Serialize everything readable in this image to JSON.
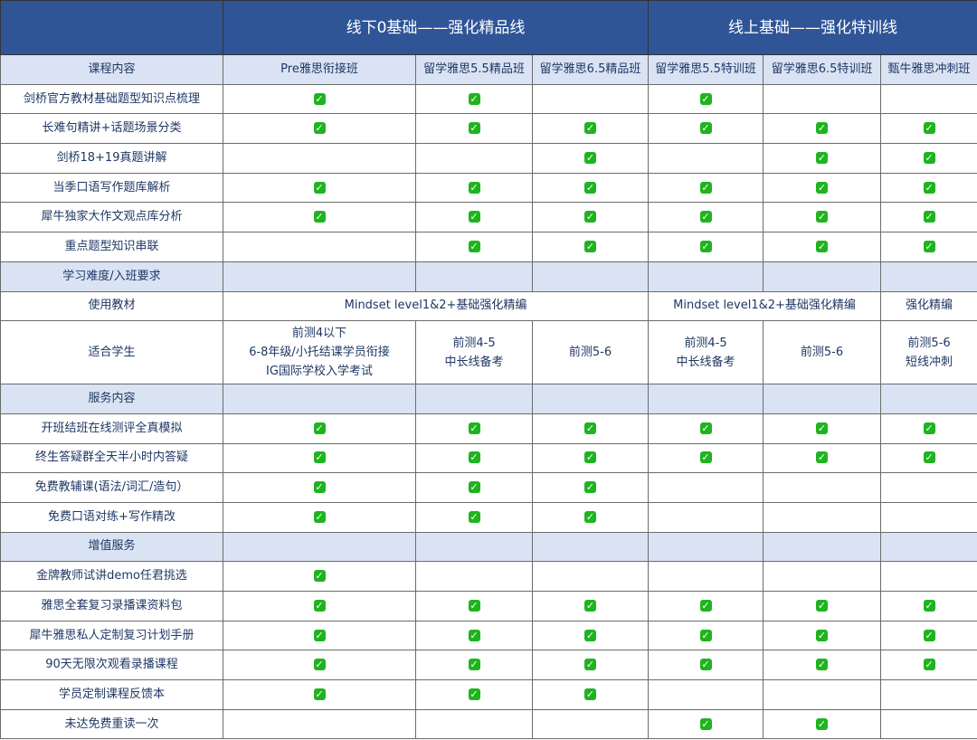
{
  "header": {
    "group1": "线下0基础——强化精品线",
    "group2": "线上基础——强化特训线"
  },
  "colors": {
    "header_bg": "#2f5597",
    "subheader_bg": "#dae3f3",
    "check": "#1fb41f"
  },
  "columns": {
    "label": "课程内容",
    "items": [
      "Pre雅思衔接班",
      "留学雅思5.5精品班",
      "留学雅思6.5精品班",
      "留学雅思5.5特训班",
      "留学雅思6.5特训班",
      "甄牛雅思冲刺班"
    ]
  },
  "rows": [
    {
      "type": "check",
      "label": "剑桥官方教材基础题型知识点梳理",
      "checks": [
        1,
        1,
        0,
        1,
        0,
        0
      ]
    },
    {
      "type": "check",
      "label": "长难句精讲+话题场景分类",
      "checks": [
        1,
        1,
        1,
        1,
        1,
        1
      ]
    },
    {
      "type": "check",
      "label": "剑桥18+19真题讲解",
      "checks": [
        0,
        0,
        1,
        0,
        1,
        1
      ]
    },
    {
      "type": "check",
      "label": "当季口语写作题库解析",
      "checks": [
        1,
        1,
        1,
        1,
        1,
        1
      ]
    },
    {
      "type": "check",
      "label": "犀牛独家大作文观点库分析",
      "checks": [
        1,
        1,
        1,
        1,
        1,
        1
      ]
    },
    {
      "type": "check",
      "label": "重点题型知识串联",
      "checks": [
        0,
        1,
        1,
        1,
        1,
        1
      ]
    },
    {
      "type": "section",
      "label": "学习难度/入班要求"
    },
    {
      "type": "materials",
      "label": "使用教材",
      "offline": "Mindset level1&2+基础强化精编",
      "online": "Mindset level1&2+基础强化精编",
      "sprint": "强化精编"
    },
    {
      "type": "text",
      "label": "适合学生",
      "cells": [
        "前测4以下\n6-8年级/小托结课学员衔接\nIG国际学校入学考试",
        "前测4-5\n中长线备考",
        "前测5-6",
        "前测4-5\n中长线备考",
        "前测5-6",
        "前测5-6\n短线冲刺"
      ]
    },
    {
      "type": "section",
      "label": "服务内容"
    },
    {
      "type": "check",
      "label": "开班结班在线测评全真模拟",
      "checks": [
        1,
        1,
        1,
        1,
        1,
        1
      ]
    },
    {
      "type": "check",
      "label": "终生答疑群全天半小时内答疑",
      "checks": [
        1,
        1,
        1,
        1,
        1,
        1
      ]
    },
    {
      "type": "check",
      "label": "免费教辅课(语法/词汇/造句）",
      "checks": [
        1,
        1,
        1,
        0,
        0,
        0
      ]
    },
    {
      "type": "check",
      "label": "免费口语对练+写作精改",
      "checks": [
        1,
        1,
        1,
        0,
        0,
        0
      ]
    },
    {
      "type": "section",
      "label": "增值服务"
    },
    {
      "type": "check",
      "label": "金牌教师试讲demo任君挑选",
      "checks": [
        1,
        0,
        0,
        0,
        0,
        0
      ]
    },
    {
      "type": "check",
      "label": "雅思全套复习录播课资料包",
      "checks": [
        1,
        1,
        1,
        1,
        1,
        1
      ]
    },
    {
      "type": "check",
      "label": "犀牛雅思私人定制复习计划手册",
      "checks": [
        1,
        1,
        1,
        1,
        1,
        1
      ]
    },
    {
      "type": "check",
      "label": "90天无限次观看录播课程",
      "checks": [
        1,
        1,
        1,
        1,
        1,
        1
      ]
    },
    {
      "type": "check",
      "label": "学员定制课程反馈本",
      "checks": [
        1,
        1,
        1,
        0,
        0,
        0
      ]
    },
    {
      "type": "check",
      "label": "未达免费重读一次",
      "checks": [
        0,
        0,
        0,
        1,
        1,
        0
      ]
    }
  ]
}
